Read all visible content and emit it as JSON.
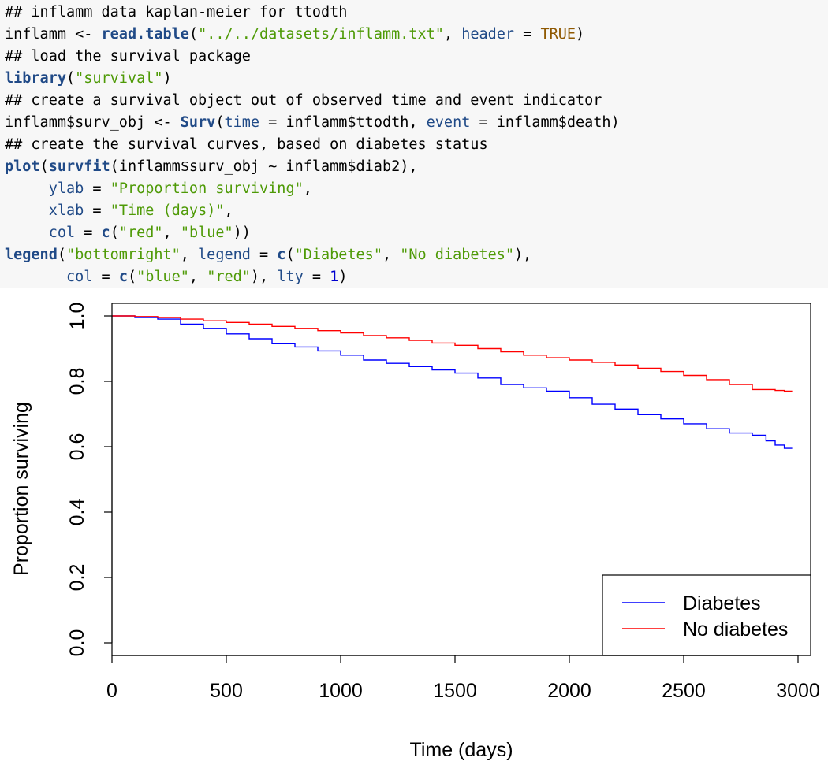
{
  "code": {
    "lines": [
      [
        {
          "t": "## inflamm data kaplan-meier for ttodth",
          "c": "comment"
        }
      ],
      [
        {
          "t": "inflamm <- ",
          "c": "op"
        },
        {
          "t": "read.table",
          "c": "fn"
        },
        {
          "t": "(",
          "c": "op"
        },
        {
          "t": "\"../../datasets/inflamm.txt\"",
          "c": "str"
        },
        {
          "t": ", ",
          "c": "op"
        },
        {
          "t": "header",
          "c": "arg"
        },
        {
          "t": " = ",
          "c": "op"
        },
        {
          "t": "TRUE",
          "c": "bool"
        },
        {
          "t": ")",
          "c": "op"
        }
      ],
      [
        {
          "t": "## load the survival package",
          "c": "comment"
        }
      ],
      [
        {
          "t": "library",
          "c": "fn"
        },
        {
          "t": "(",
          "c": "op"
        },
        {
          "t": "\"survival\"",
          "c": "str"
        },
        {
          "t": ")",
          "c": "op"
        }
      ],
      [
        {
          "t": "## create a survival object out of observed time and event indicator",
          "c": "comment"
        }
      ],
      [
        {
          "t": "inflamm$surv_obj <- ",
          "c": "op"
        },
        {
          "t": "Surv",
          "c": "fn"
        },
        {
          "t": "(",
          "c": "op"
        },
        {
          "t": "time",
          "c": "arg"
        },
        {
          "t": " = inflamm$ttodth, ",
          "c": "op"
        },
        {
          "t": "event",
          "c": "arg"
        },
        {
          "t": " = inflamm$death)",
          "c": "op"
        }
      ],
      [
        {
          "t": "## create the survival curves, based on diabetes status",
          "c": "comment"
        }
      ],
      [
        {
          "t": "plot",
          "c": "fn"
        },
        {
          "t": "(",
          "c": "op"
        },
        {
          "t": "survfit",
          "c": "fn"
        },
        {
          "t": "(inflamm$surv_obj ~ inflamm$diab2),",
          "c": "op"
        }
      ],
      [
        {
          "t": "     ",
          "c": "op"
        },
        {
          "t": "ylab",
          "c": "arg"
        },
        {
          "t": " = ",
          "c": "op"
        },
        {
          "t": "\"Proportion surviving\"",
          "c": "str"
        },
        {
          "t": ",",
          "c": "op"
        }
      ],
      [
        {
          "t": "     ",
          "c": "op"
        },
        {
          "t": "xlab",
          "c": "arg"
        },
        {
          "t": " = ",
          "c": "op"
        },
        {
          "t": "\"Time (days)\"",
          "c": "str"
        },
        {
          "t": ",",
          "c": "op"
        }
      ],
      [
        {
          "t": "     ",
          "c": "op"
        },
        {
          "t": "col",
          "c": "arg"
        },
        {
          "t": " = ",
          "c": "op"
        },
        {
          "t": "c",
          "c": "fn"
        },
        {
          "t": "(",
          "c": "op"
        },
        {
          "t": "\"red\"",
          "c": "str"
        },
        {
          "t": ", ",
          "c": "op"
        },
        {
          "t": "\"blue\"",
          "c": "str"
        },
        {
          "t": "))",
          "c": "op"
        }
      ],
      [
        {
          "t": "legend",
          "c": "fn"
        },
        {
          "t": "(",
          "c": "op"
        },
        {
          "t": "\"bottomright\"",
          "c": "str"
        },
        {
          "t": ", ",
          "c": "op"
        },
        {
          "t": "legend",
          "c": "arg"
        },
        {
          "t": " = ",
          "c": "op"
        },
        {
          "t": "c",
          "c": "fn"
        },
        {
          "t": "(",
          "c": "op"
        },
        {
          "t": "\"Diabetes\"",
          "c": "str"
        },
        {
          "t": ", ",
          "c": "op"
        },
        {
          "t": "\"No diabetes\"",
          "c": "str"
        },
        {
          "t": "),",
          "c": "op"
        }
      ],
      [
        {
          "t": "       ",
          "c": "op"
        },
        {
          "t": "col",
          "c": "arg"
        },
        {
          "t": " = ",
          "c": "op"
        },
        {
          "t": "c",
          "c": "fn"
        },
        {
          "t": "(",
          "c": "op"
        },
        {
          "t": "\"blue\"",
          "c": "str"
        },
        {
          "t": ", ",
          "c": "op"
        },
        {
          "t": "\"red\"",
          "c": "str"
        },
        {
          "t": "), ",
          "c": "op"
        },
        {
          "t": "lty",
          "c": "arg"
        },
        {
          "t": " = ",
          "c": "op"
        },
        {
          "t": "1",
          "c": "num"
        },
        {
          "t": ")",
          "c": "op"
        }
      ]
    ]
  },
  "chart_data": {
    "type": "line",
    "title": "",
    "xlabel": "Time (days)",
    "ylabel": "Proportion surviving",
    "xlim": [
      0,
      3000
    ],
    "ylim": [
      0,
      1
    ],
    "x_ticks": [
      0,
      500,
      1000,
      1500,
      2000,
      2500,
      3000
    ],
    "x_tick_labels": [
      "0",
      "500",
      "1000",
      "1500",
      "2000",
      "2500",
      "3000"
    ],
    "y_ticks": [
      0,
      0.2,
      0.4,
      0.6,
      0.8,
      1
    ],
    "y_tick_labels": [
      "0.0",
      "0.2",
      "0.4",
      "0.6",
      "0.8",
      "1.0"
    ],
    "grid": false,
    "legend_position": "bottom-right",
    "series": [
      {
        "name": "Diabetes",
        "color": "#0000ff",
        "step": true,
        "points": [
          [
            0,
            1.0
          ],
          [
            100,
            0.995
          ],
          [
            200,
            0.99
          ],
          [
            300,
            0.975
          ],
          [
            400,
            0.962
          ],
          [
            500,
            0.945
          ],
          [
            600,
            0.93
          ],
          [
            700,
            0.915
          ],
          [
            800,
            0.905
          ],
          [
            900,
            0.893
          ],
          [
            1000,
            0.88
          ],
          [
            1100,
            0.865
          ],
          [
            1200,
            0.855
          ],
          [
            1300,
            0.845
          ],
          [
            1400,
            0.835
          ],
          [
            1500,
            0.825
          ],
          [
            1600,
            0.81
          ],
          [
            1700,
            0.79
          ],
          [
            1800,
            0.78
          ],
          [
            1900,
            0.77
          ],
          [
            2000,
            0.75
          ],
          [
            2100,
            0.73
          ],
          [
            2200,
            0.715
          ],
          [
            2300,
            0.698
          ],
          [
            2400,
            0.685
          ],
          [
            2500,
            0.67
          ],
          [
            2600,
            0.655
          ],
          [
            2700,
            0.642
          ],
          [
            2800,
            0.635
          ],
          [
            2860,
            0.618
          ],
          [
            2900,
            0.605
          ],
          [
            2940,
            0.595
          ]
        ]
      },
      {
        "name": "No diabetes",
        "color": "#ff0000",
        "step": true,
        "points": [
          [
            0,
            1.0
          ],
          [
            100,
            0.998
          ],
          [
            200,
            0.995
          ],
          [
            300,
            0.99
          ],
          [
            400,
            0.985
          ],
          [
            500,
            0.98
          ],
          [
            600,
            0.975
          ],
          [
            700,
            0.968
          ],
          [
            800,
            0.962
          ],
          [
            900,
            0.955
          ],
          [
            1000,
            0.948
          ],
          [
            1100,
            0.94
          ],
          [
            1200,
            0.933
          ],
          [
            1300,
            0.925
          ],
          [
            1400,
            0.917
          ],
          [
            1500,
            0.91
          ],
          [
            1600,
            0.9
          ],
          [
            1700,
            0.89
          ],
          [
            1800,
            0.88
          ],
          [
            1900,
            0.872
          ],
          [
            2000,
            0.865
          ],
          [
            2100,
            0.858
          ],
          [
            2200,
            0.85
          ],
          [
            2300,
            0.84
          ],
          [
            2400,
            0.83
          ],
          [
            2500,
            0.818
          ],
          [
            2600,
            0.805
          ],
          [
            2700,
            0.79
          ],
          [
            2800,
            0.775
          ],
          [
            2900,
            0.772
          ],
          [
            2940,
            0.77
          ]
        ]
      }
    ],
    "legend": {
      "entries": [
        {
          "label": "Diabetes",
          "color": "#0000ff"
        },
        {
          "label": "No diabetes",
          "color": "#ff0000"
        }
      ]
    }
  }
}
